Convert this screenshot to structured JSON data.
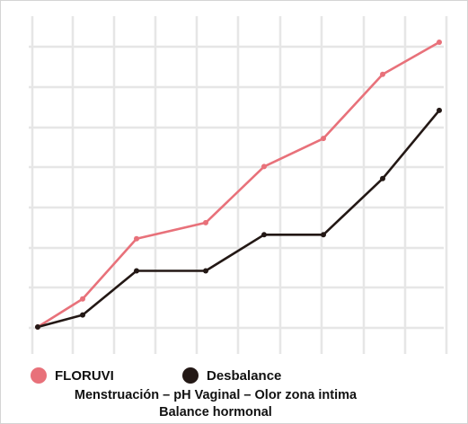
{
  "chart_data": {
    "type": "line",
    "title": "",
    "xlabel": "",
    "ylabel": "",
    "x": [
      1,
      2,
      3,
      4,
      5,
      6,
      7,
      8
    ],
    "xlim": [
      0.8,
      8.5
    ],
    "ylim": [
      0,
      7.5
    ],
    "grid": true,
    "legend_position": "bottom",
    "series": [
      {
        "name": "FLORUVI",
        "color": "#e8717a",
        "values": [
          0,
          0.7,
          2.2,
          2.6,
          4.0,
          4.7,
          6.3,
          7.1
        ]
      },
      {
        "name": "Desbalance",
        "color": "#231815",
        "values": [
          0,
          0.3,
          1.4,
          1.4,
          2.3,
          2.3,
          3.7,
          5.4
        ]
      }
    ]
  },
  "caption": {
    "line1": "Menstruación – pH Vaginal – Olor zona intima",
    "line2": "Balance hormonal"
  }
}
